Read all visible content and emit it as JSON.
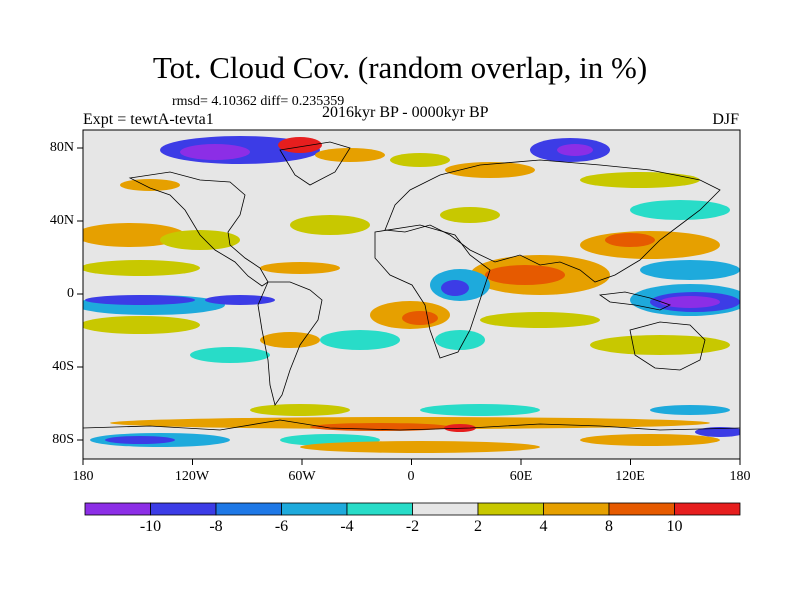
{
  "title": "Tot. Cloud Cov. (random overlap, in %)",
  "stats": "rmsd= 4.10362 diff= 0.235359",
  "experiment": "Expt = tewtA-tevta1",
  "period": "2016kyr BP - 0000kyr BP",
  "season": "DJF",
  "lat_ticks": [
    "80N",
    "40N",
    "0",
    "40S",
    "80S"
  ],
  "lon_ticks": [
    "180",
    "120W",
    "60W",
    "0",
    "60E",
    "120E",
    "180"
  ],
  "colorbar": {
    "labels": [
      "-10",
      "-8",
      "-6",
      "-4",
      "-2",
      "2",
      "4",
      "8",
      "10"
    ],
    "colors": [
      "#8c2ee6",
      "#3c3ce6",
      "#1e78e6",
      "#1eaadc",
      "#28dcc8",
      "#e6e6e6",
      "#c8c800",
      "#e6a000",
      "#e65a00",
      "#e61e1e"
    ]
  }
}
